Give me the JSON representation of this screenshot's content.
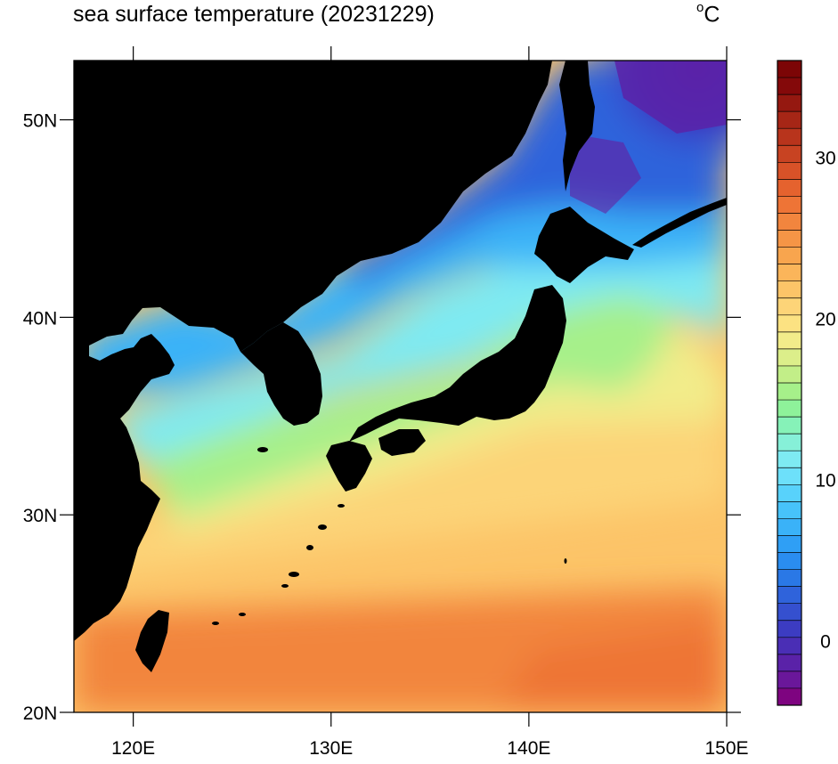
{
  "title": "sea surface temperature (20231229)",
  "units": "C",
  "units_degree_symbol": "o",
  "map": {
    "lon_range": [
      117,
      150
    ],
    "lat_range": [
      20,
      53
    ],
    "lon_ticks": [
      {
        "value": 120,
        "label": "120E"
      },
      {
        "value": 130,
        "label": "130E"
      },
      {
        "value": 140,
        "label": "140E"
      },
      {
        "value": 150,
        "label": "150E"
      }
    ],
    "lat_ticks": [
      {
        "value": 50,
        "label": "50N"
      },
      {
        "value": 40,
        "label": "40N"
      },
      {
        "value": 30,
        "label": "30N"
      },
      {
        "value": 20,
        "label": "20N"
      }
    ],
    "land_color": "#000000"
  },
  "colorbar": {
    "min": -4,
    "max": 36,
    "ticks": [
      {
        "value": 0,
        "label": "0"
      },
      {
        "value": 10,
        "label": "10"
      },
      {
        "value": 20,
        "label": "20"
      },
      {
        "value": 30,
        "label": "30"
      }
    ],
    "colors": [
      "#7e0480",
      "#6a179a",
      "#5a22a8",
      "#4a2eb5",
      "#3c3cc2",
      "#3550cf",
      "#2f63db",
      "#2a78e6",
      "#2a8df0",
      "#2f9ff5",
      "#3ab2f8",
      "#47c3fa",
      "#58d2fb",
      "#6de0fa",
      "#7eeaf2",
      "#86f0d8",
      "#86f2b8",
      "#8ef29a",
      "#a6f08a",
      "#c2ee88",
      "#dcee8a",
      "#f2ec8a",
      "#fce282",
      "#fdd478",
      "#fcc468",
      "#fbb55a",
      "#f8a54e",
      "#f59546",
      "#f2853e",
      "#ee7436",
      "#e5622e",
      "#d85228",
      "#c84322",
      "#b8341c",
      "#a62616",
      "#951810",
      "#84090a",
      "#7c0506"
    ]
  }
}
